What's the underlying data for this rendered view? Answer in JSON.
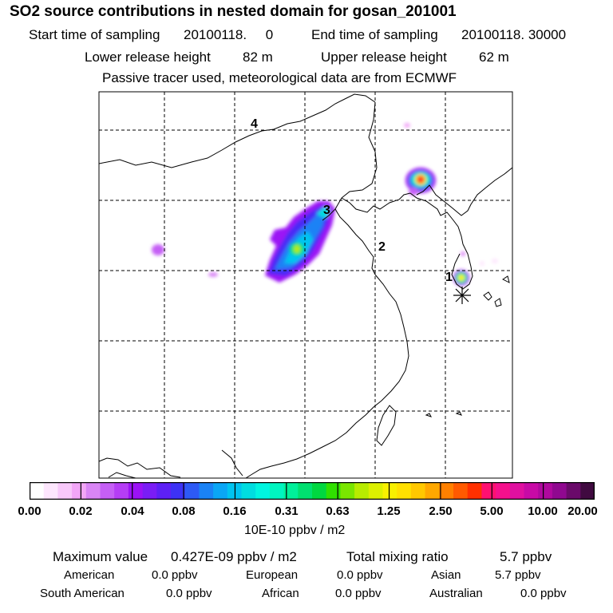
{
  "header": {
    "title": "SO2 source contributions in nested domain for gosan_201001",
    "start_label": "Start time of sampling",
    "start_value": "20100118.     0",
    "end_label": "End time of sampling",
    "end_value": "20100118. 30000",
    "lower_label": "Lower release height",
    "lower_value": "82 m",
    "upper_label": "Upper release height",
    "upper_value": "62 m",
    "note": "Passive tracer used, meteorological data are from ECMWF"
  },
  "map": {
    "markers": [
      {
        "label": "1"
      },
      {
        "label": "2"
      },
      {
        "label": "3"
      },
      {
        "label": "4"
      }
    ],
    "receptor_marker": "asterisk-icon"
  },
  "legend": {
    "ticks": [
      "0.00",
      "0.02",
      "0.04",
      "0.08",
      "0.16",
      "0.31",
      "0.63",
      "1.25",
      "2.50",
      "5.00",
      "10.00",
      "20.00"
    ],
    "unit": "10E-10 ppbv / m2",
    "colors": [
      "#ffffff",
      "#fde6fd",
      "#f8c8fa",
      "#f2a6f7",
      "#d985f5",
      "#c55ff5",
      "#b53df5",
      "#9b12f5",
      "#7a1df5",
      "#5d20f5",
      "#3d32f5",
      "#2d5af5",
      "#1a82f5",
      "#0aa6f5",
      "#00c4f0",
      "#00dde0",
      "#00f5e0",
      "#00f5c0",
      "#00f09a",
      "#00e070",
      "#00d840",
      "#30e000",
      "#7ae600",
      "#b8ec00",
      "#dcf000",
      "#f8f000",
      "#ffe000",
      "#ffc800",
      "#ffa800",
      "#ff8000",
      "#ff5a00",
      "#ff3000",
      "#ff1070",
      "#f5108c",
      "#e010a0",
      "#c80aa6",
      "#b0089e",
      "#900890",
      "#6a0a6a",
      "#400a40"
    ]
  },
  "stats": {
    "max_label": "Maximum value",
    "max_value": "0.427E-09 ppbv / m2",
    "total_label": "Total mixing ratio",
    "total_value": "5.7 ppbv",
    "regions": [
      {
        "name": "American",
        "value": "0.0 ppbv"
      },
      {
        "name": "European",
        "value": "0.0 ppbv"
      },
      {
        "name": "Asian",
        "value": "5.7 ppbv"
      },
      {
        "name": "South American",
        "value": "0.0 ppbv"
      },
      {
        "name": "African",
        "value": "0.0 ppbv"
      },
      {
        "name": "Australian",
        "value": "0.0 ppbv"
      }
    ]
  }
}
